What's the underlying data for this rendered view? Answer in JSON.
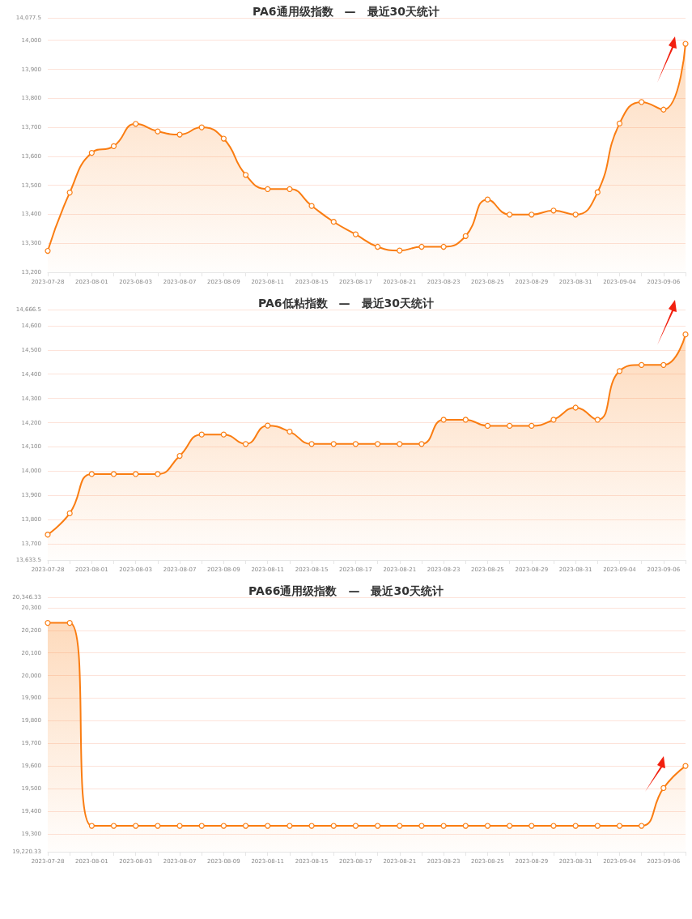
{
  "chart_data": [
    {
      "type": "area",
      "title": "PA6通用级指数　—　最近30天统计",
      "categories": [
        "2023-07-28",
        null,
        "2023-08-01",
        null,
        "2023-08-03",
        null,
        "2023-08-07",
        null,
        "2023-08-09",
        null,
        "2023-08-11",
        null,
        "2023-08-15",
        null,
        "2023-08-17",
        null,
        "2023-08-21",
        null,
        "2023-08-23",
        null,
        "2023-08-25",
        null,
        "2023-08-29",
        null,
        "2023-08-31",
        null,
        "2023-09-04",
        null,
        "2023-09-06",
        null
      ],
      "series": [
        {
          "color": "#fa7d12",
          "values": [
            13274,
            13475,
            13612,
            13635,
            13712,
            13686,
            13675,
            13700,
            13661,
            13536,
            13487,
            13487,
            13429,
            13374,
            13331,
            13288,
            13275,
            13288,
            13288,
            13325,
            13451,
            13399,
            13399,
            13413,
            13399,
            13476,
            13713,
            13787,
            13761,
            13988
          ]
        }
      ],
      "ylim": [
        13200,
        14077.5
      ],
      "yticks": [
        {
          "value": 13200,
          "label": "13,200"
        },
        {
          "value": 13300,
          "label": "13,300"
        },
        {
          "value": 13400,
          "label": "13,400"
        },
        {
          "value": 13500,
          "label": "13,500"
        },
        {
          "value": 13600,
          "label": "13,600"
        },
        {
          "value": 13700,
          "label": "13,700"
        },
        {
          "value": 13800,
          "label": "13,800"
        },
        {
          "value": 13900,
          "label": "13,900"
        },
        {
          "value": 14000,
          "label": "14,000"
        },
        {
          "value": 14077.5,
          "label": "14,077.5"
        }
      ],
      "grid": "y",
      "marker": "circle"
    },
    {
      "type": "area",
      "title": "PA6低粘指数　—　最近30天统计",
      "categories": [
        "2023-07-28",
        null,
        "2023-08-01",
        null,
        "2023-08-03",
        null,
        "2023-08-07",
        null,
        "2023-08-09",
        null,
        "2023-08-11",
        null,
        "2023-08-15",
        null,
        "2023-08-17",
        null,
        "2023-08-21",
        null,
        "2023-08-23",
        null,
        "2023-08-25",
        null,
        "2023-08-29",
        null,
        "2023-08-31",
        null,
        "2023-09-04",
        null,
        "2023-09-06",
        null
      ],
      "series": [
        {
          "color": "#fa7d12",
          "values": [
            13738,
            13826,
            13988,
            13988,
            13988,
            13988,
            14063,
            14151,
            14151,
            14112,
            14188,
            14163,
            14112,
            14112,
            14112,
            14112,
            14112,
            14112,
            14212,
            14212,
            14187,
            14187,
            14187,
            14212,
            14262,
            14212,
            14413,
            14438,
            14438,
            14564
          ]
        }
      ],
      "ylim": [
        13633.5,
        14666.5
      ],
      "yticks": [
        {
          "value": 13633.5,
          "label": "13,633.5"
        },
        {
          "value": 13700,
          "label": "13,700"
        },
        {
          "value": 13800,
          "label": "13,800"
        },
        {
          "value": 13900,
          "label": "13,900"
        },
        {
          "value": 14000,
          "label": "14,000"
        },
        {
          "value": 14100,
          "label": "14,100"
        },
        {
          "value": 14200,
          "label": "14,200"
        },
        {
          "value": 14300,
          "label": "14,300"
        },
        {
          "value": 14400,
          "label": "14,400"
        },
        {
          "value": 14500,
          "label": "14,500"
        },
        {
          "value": 14600,
          "label": "14,600"
        },
        {
          "value": 14666.5,
          "label": "14,666.5"
        }
      ],
      "grid": "y",
      "marker": "circle"
    },
    {
      "type": "area",
      "title": "PA66通用级指数　—　最近30天统计",
      "categories": [
        "2023-07-28",
        null,
        "2023-08-01",
        null,
        "2023-08-03",
        null,
        "2023-08-07",
        null,
        "2023-08-09",
        null,
        "2023-08-11",
        null,
        "2023-08-15",
        null,
        "2023-08-17",
        null,
        "2023-08-21",
        null,
        "2023-08-23",
        null,
        "2023-08-25",
        null,
        "2023-08-29",
        null,
        "2023-08-31",
        null,
        "2023-09-04",
        null,
        "2023-09-06",
        null
      ],
      "series": [
        {
          "color": "#fa7d12",
          "values": [
            20233,
            20233,
            19335,
            19335,
            19335,
            19335,
            19335,
            19335,
            19335,
            19335,
            19335,
            19335,
            19335,
            19335,
            19335,
            19335,
            19335,
            19335,
            19335,
            19335,
            19335,
            19335,
            19335,
            19335,
            19335,
            19335,
            19335,
            19335,
            19502,
            19600
          ]
        }
      ],
      "ylim": [
        19220.33,
        20346.33
      ],
      "yticks": [
        {
          "value": 19220.33,
          "label": "19,220.33"
        },
        {
          "value": 19300,
          "label": "19,300"
        },
        {
          "value": 19400,
          "label": "19,400"
        },
        {
          "value": 19500,
          "label": "19,500"
        },
        {
          "value": 19600,
          "label": "19,600"
        },
        {
          "value": 19700,
          "label": "19,700"
        },
        {
          "value": 19800,
          "label": "19,800"
        },
        {
          "value": 19900,
          "label": "19,900"
        },
        {
          "value": 20000,
          "label": "20,000"
        },
        {
          "value": 20100,
          "label": "20,100"
        },
        {
          "value": 20200,
          "label": "20,200"
        },
        {
          "value": 20300,
          "label": "20,300"
        },
        {
          "value": 20346.33,
          "label": "20,346.33"
        }
      ],
      "grid": "y",
      "marker": "circle"
    }
  ]
}
